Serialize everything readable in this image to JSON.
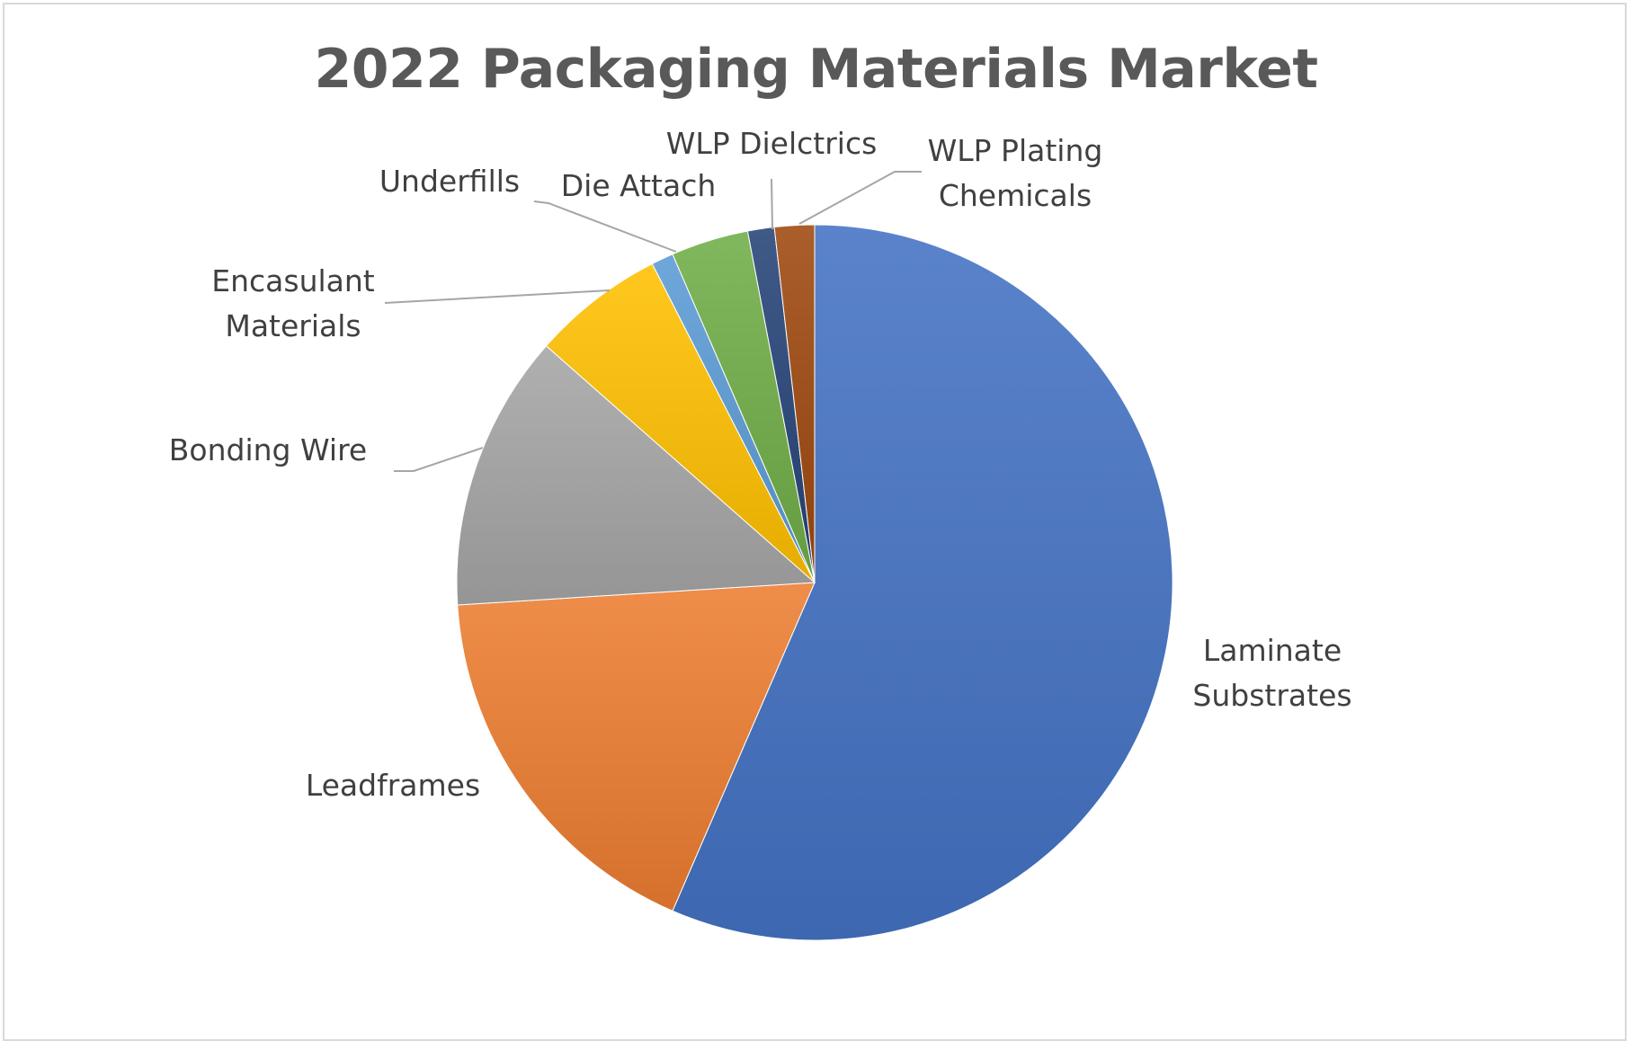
{
  "chart_data": {
    "type": "pie",
    "title": "2022 Packaging Materials Market",
    "legend": "none",
    "data_labels": "category names with leader lines",
    "slices": [
      {
        "label": "Laminate Substrates",
        "lines": [
          "Laminate",
          "Substrates"
        ],
        "value": 56.5,
        "color": "#4472c4"
      },
      {
        "label": "Leadframes",
        "lines": [
          "Leadframes"
        ],
        "value": 17.5,
        "color": "#ed7d31"
      },
      {
        "label": "Bonding Wire",
        "lines": [
          "Bonding Wire"
        ],
        "value": 12.5,
        "color": "#a5a5a5"
      },
      {
        "label": "Encasulant Materials",
        "lines": [
          "Encasulant",
          "Materials"
        ],
        "value": 6.0,
        "color": "#ffc000"
      },
      {
        "label": "Underfills",
        "lines": [
          "Underfills"
        ],
        "value": 1.0,
        "color": "#5b9bd5"
      },
      {
        "label": "Die Attach",
        "lines": [
          "Die Attach"
        ],
        "value": 3.5,
        "color": "#70ad47"
      },
      {
        "label": "WLP Dielctrics",
        "lines": [
          "WLP Dielctrics"
        ],
        "value": 1.2,
        "color": "#264478"
      },
      {
        "label": "WLP Plating Chemicals",
        "lines": [
          "WLP Plating",
          "Chemicals"
        ],
        "value": 1.8,
        "color": "#9e480e"
      }
    ]
  }
}
